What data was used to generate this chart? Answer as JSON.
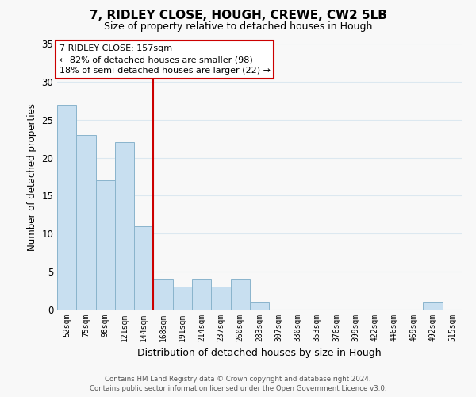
{
  "title": "7, RIDLEY CLOSE, HOUGH, CREWE, CW2 5LB",
  "subtitle": "Size of property relative to detached houses in Hough",
  "xlabel": "Distribution of detached houses by size in Hough",
  "ylabel": "Number of detached properties",
  "bin_labels": [
    "52sqm",
    "75sqm",
    "98sqm",
    "121sqm",
    "144sqm",
    "168sqm",
    "191sqm",
    "214sqm",
    "237sqm",
    "260sqm",
    "283sqm",
    "307sqm",
    "330sqm",
    "353sqm",
    "376sqm",
    "399sqm",
    "422sqm",
    "446sqm",
    "469sqm",
    "492sqm",
    "515sqm"
  ],
  "bar_heights": [
    27,
    23,
    17,
    22,
    11,
    4,
    3,
    4,
    3,
    4,
    1,
    0,
    0,
    0,
    0,
    0,
    0,
    0,
    0,
    1,
    0
  ],
  "bar_color": "#c8dff0",
  "bar_edge_color": "#8ab4cc",
  "vline_x_idx": 4.5,
  "vline_color": "#cc0000",
  "ylim": [
    0,
    35
  ],
  "yticks": [
    0,
    5,
    10,
    15,
    20,
    25,
    30,
    35
  ],
  "annotation_title": "7 RIDLEY CLOSE: 157sqm",
  "annotation_line1": "← 82% of detached houses are smaller (98)",
  "annotation_line2": "18% of semi-detached houses are larger (22) →",
  "footer_line1": "Contains HM Land Registry data © Crown copyright and database right 2024.",
  "footer_line2": "Contains public sector information licensed under the Open Government Licence v3.0.",
  "background_color": "#f8f8f8",
  "grid_color": "#dce8f0"
}
